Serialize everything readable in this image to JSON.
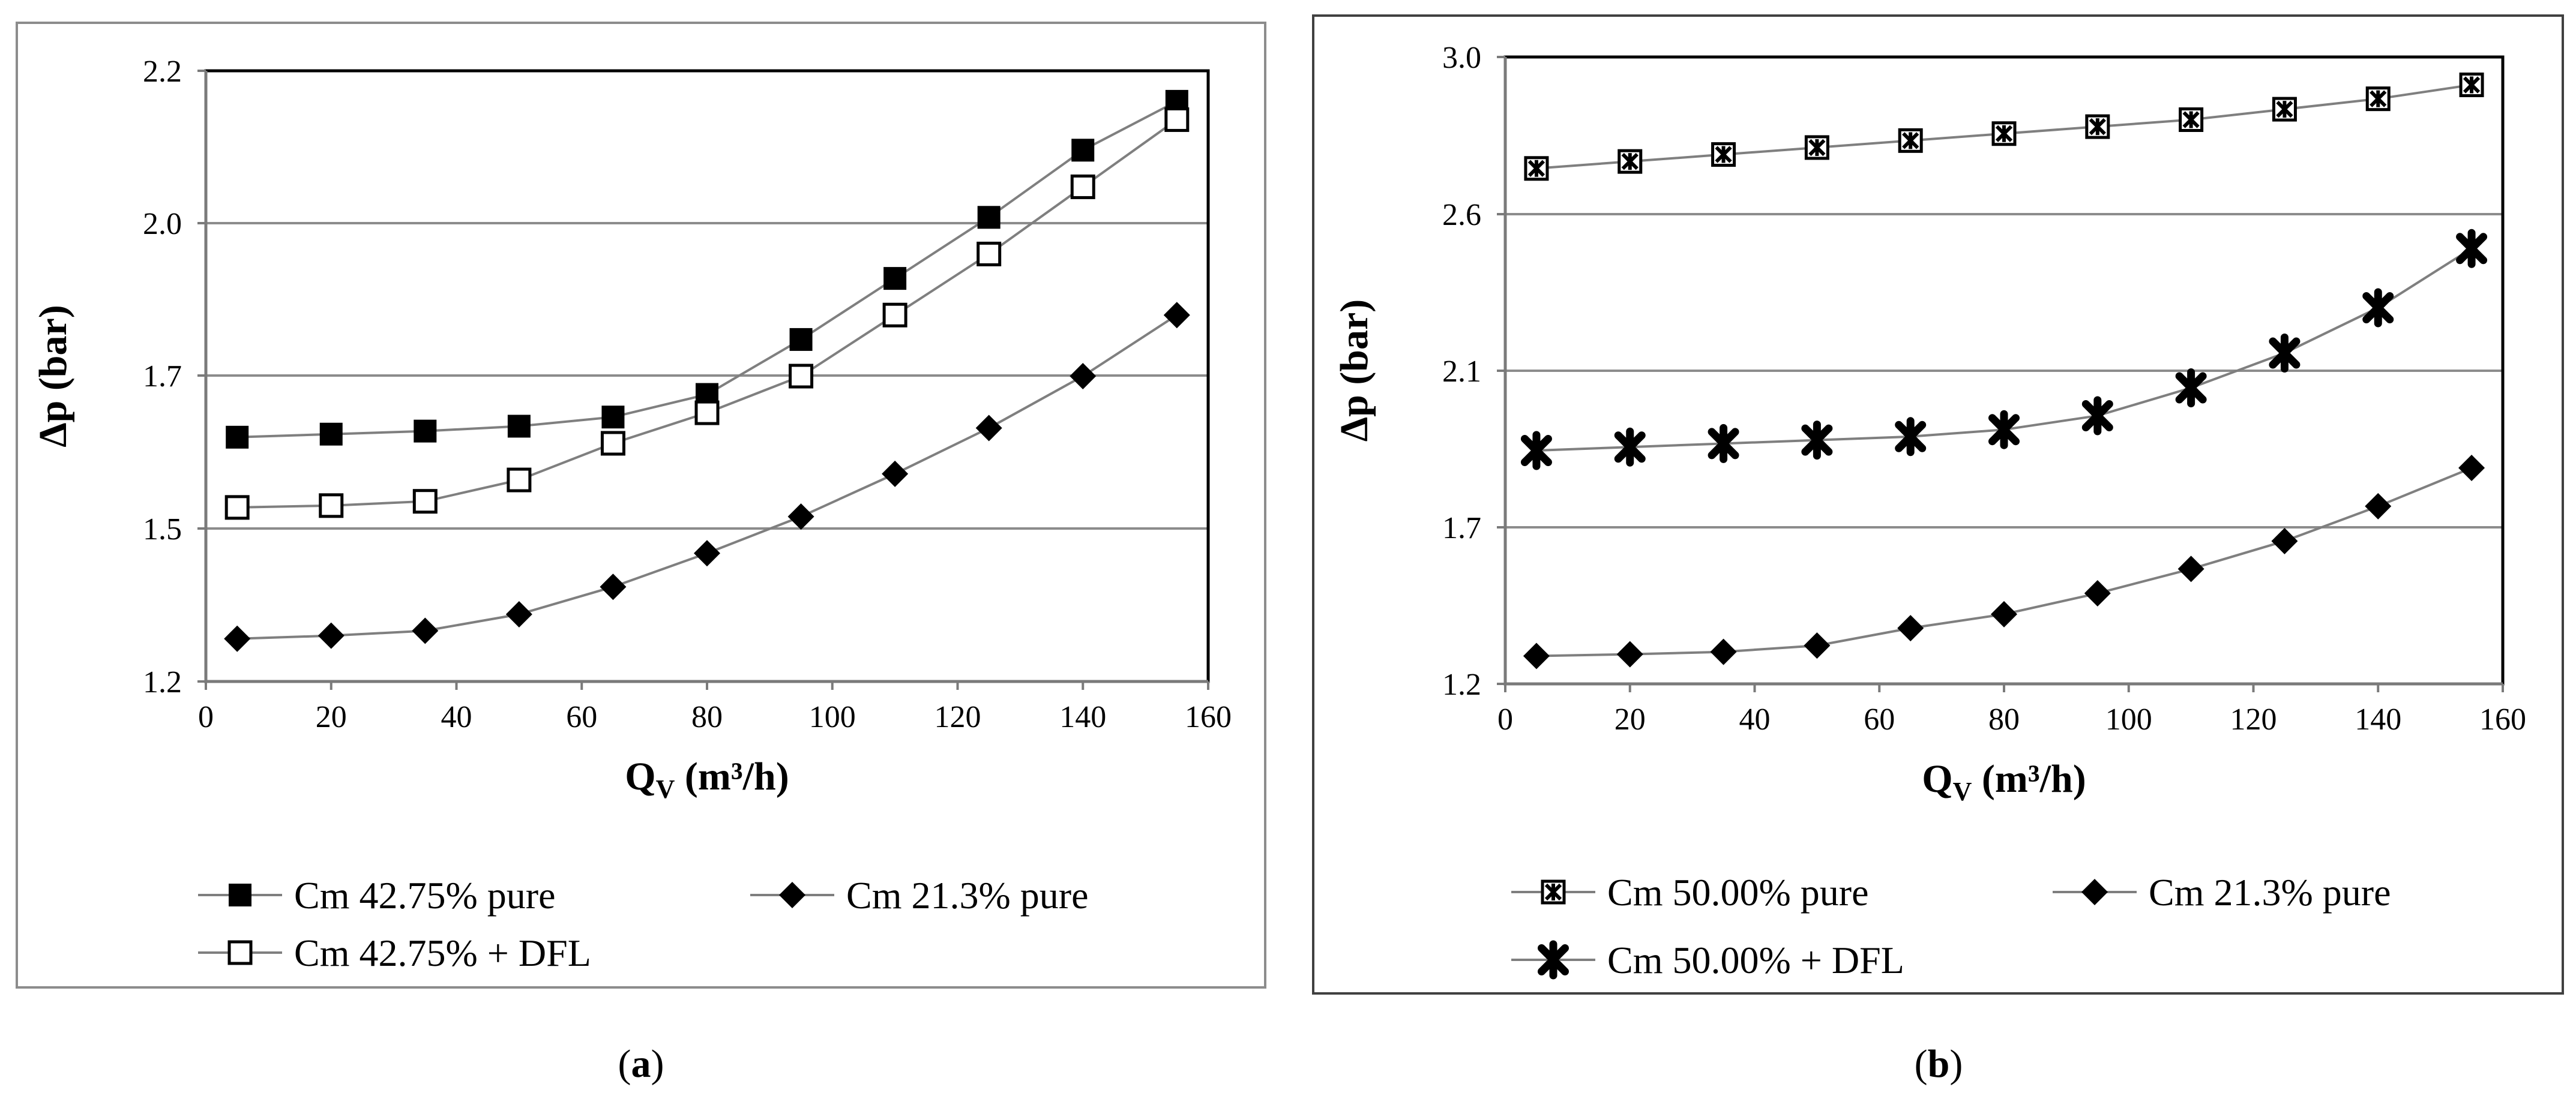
{
  "chart_data": [
    {
      "type": "line",
      "panel_label": "a",
      "xlabel": "Q_V (m³/h)",
      "ylabel": "Δp (bar)",
      "xlim": [
        0,
        160
      ],
      "ylim": [
        1.25,
        2.25
      ],
      "x_ticks": [
        "0",
        "20",
        "40",
        "60",
        "80",
        "100",
        "120",
        "140",
        "160"
      ],
      "y_ticks": [
        "1.2",
        "1.5",
        "1.7",
        "2.0",
        "2.2"
      ],
      "x": [
        5,
        20,
        35,
        50,
        65,
        80,
        95,
        110,
        125,
        140,
        155
      ],
      "series": [
        {
          "name": "Cm 42.75% pure",
          "marker": "filled-square",
          "values": [
            1.65,
            1.655,
            1.66,
            1.668,
            1.683,
            1.72,
            1.81,
            1.91,
            2.01,
            2.12,
            2.2
          ]
        },
        {
          "name": "Cm 21.3% pure",
          "marker": "diamond",
          "values": [
            1.32,
            1.325,
            1.333,
            1.36,
            1.405,
            1.46,
            1.52,
            1.59,
            1.665,
            1.75,
            1.85
          ]
        },
        {
          "name": "Cm 42.75% + DFL",
          "marker": "open-square",
          "values": [
            1.535,
            1.538,
            1.545,
            1.58,
            1.64,
            1.69,
            1.75,
            1.85,
            1.95,
            2.06,
            2.17
          ]
        }
      ],
      "legend_order": [
        0,
        1,
        2
      ]
    },
    {
      "type": "line",
      "panel_label": "b",
      "xlabel": "Q_V (m³/h)",
      "ylabel": "Δp (bar)",
      "xlim": [
        0,
        160
      ],
      "ylim": [
        1.2,
        3.0
      ],
      "x_ticks": [
        "0",
        "20",
        "40",
        "60",
        "80",
        "100",
        "120",
        "140",
        "160"
      ],
      "y_ticks": [
        "1.2",
        "1.7",
        "2.1",
        "2.6",
        "3.0"
      ],
      "x": [
        5,
        20,
        35,
        50,
        65,
        80,
        95,
        110,
        125,
        140,
        155
      ],
      "series": [
        {
          "name": "Cm 50.00% pure",
          "marker": "open-star-square",
          "values": [
            2.68,
            2.7,
            2.72,
            2.74,
            2.76,
            2.78,
            2.8,
            2.82,
            2.85,
            2.88,
            2.92
          ]
        },
        {
          "name": "Cm 21.3% pure",
          "marker": "diamond",
          "values": [
            1.28,
            1.285,
            1.292,
            1.31,
            1.36,
            1.4,
            1.46,
            1.53,
            1.61,
            1.71,
            1.82
          ]
        },
        {
          "name": "Cm 50.00% + DFL",
          "marker": "star",
          "values": [
            1.87,
            1.88,
            1.89,
            1.9,
            1.91,
            1.93,
            1.97,
            2.05,
            2.15,
            2.28,
            2.45
          ]
        }
      ],
      "legend_order": [
        0,
        1,
        2
      ]
    }
  ]
}
